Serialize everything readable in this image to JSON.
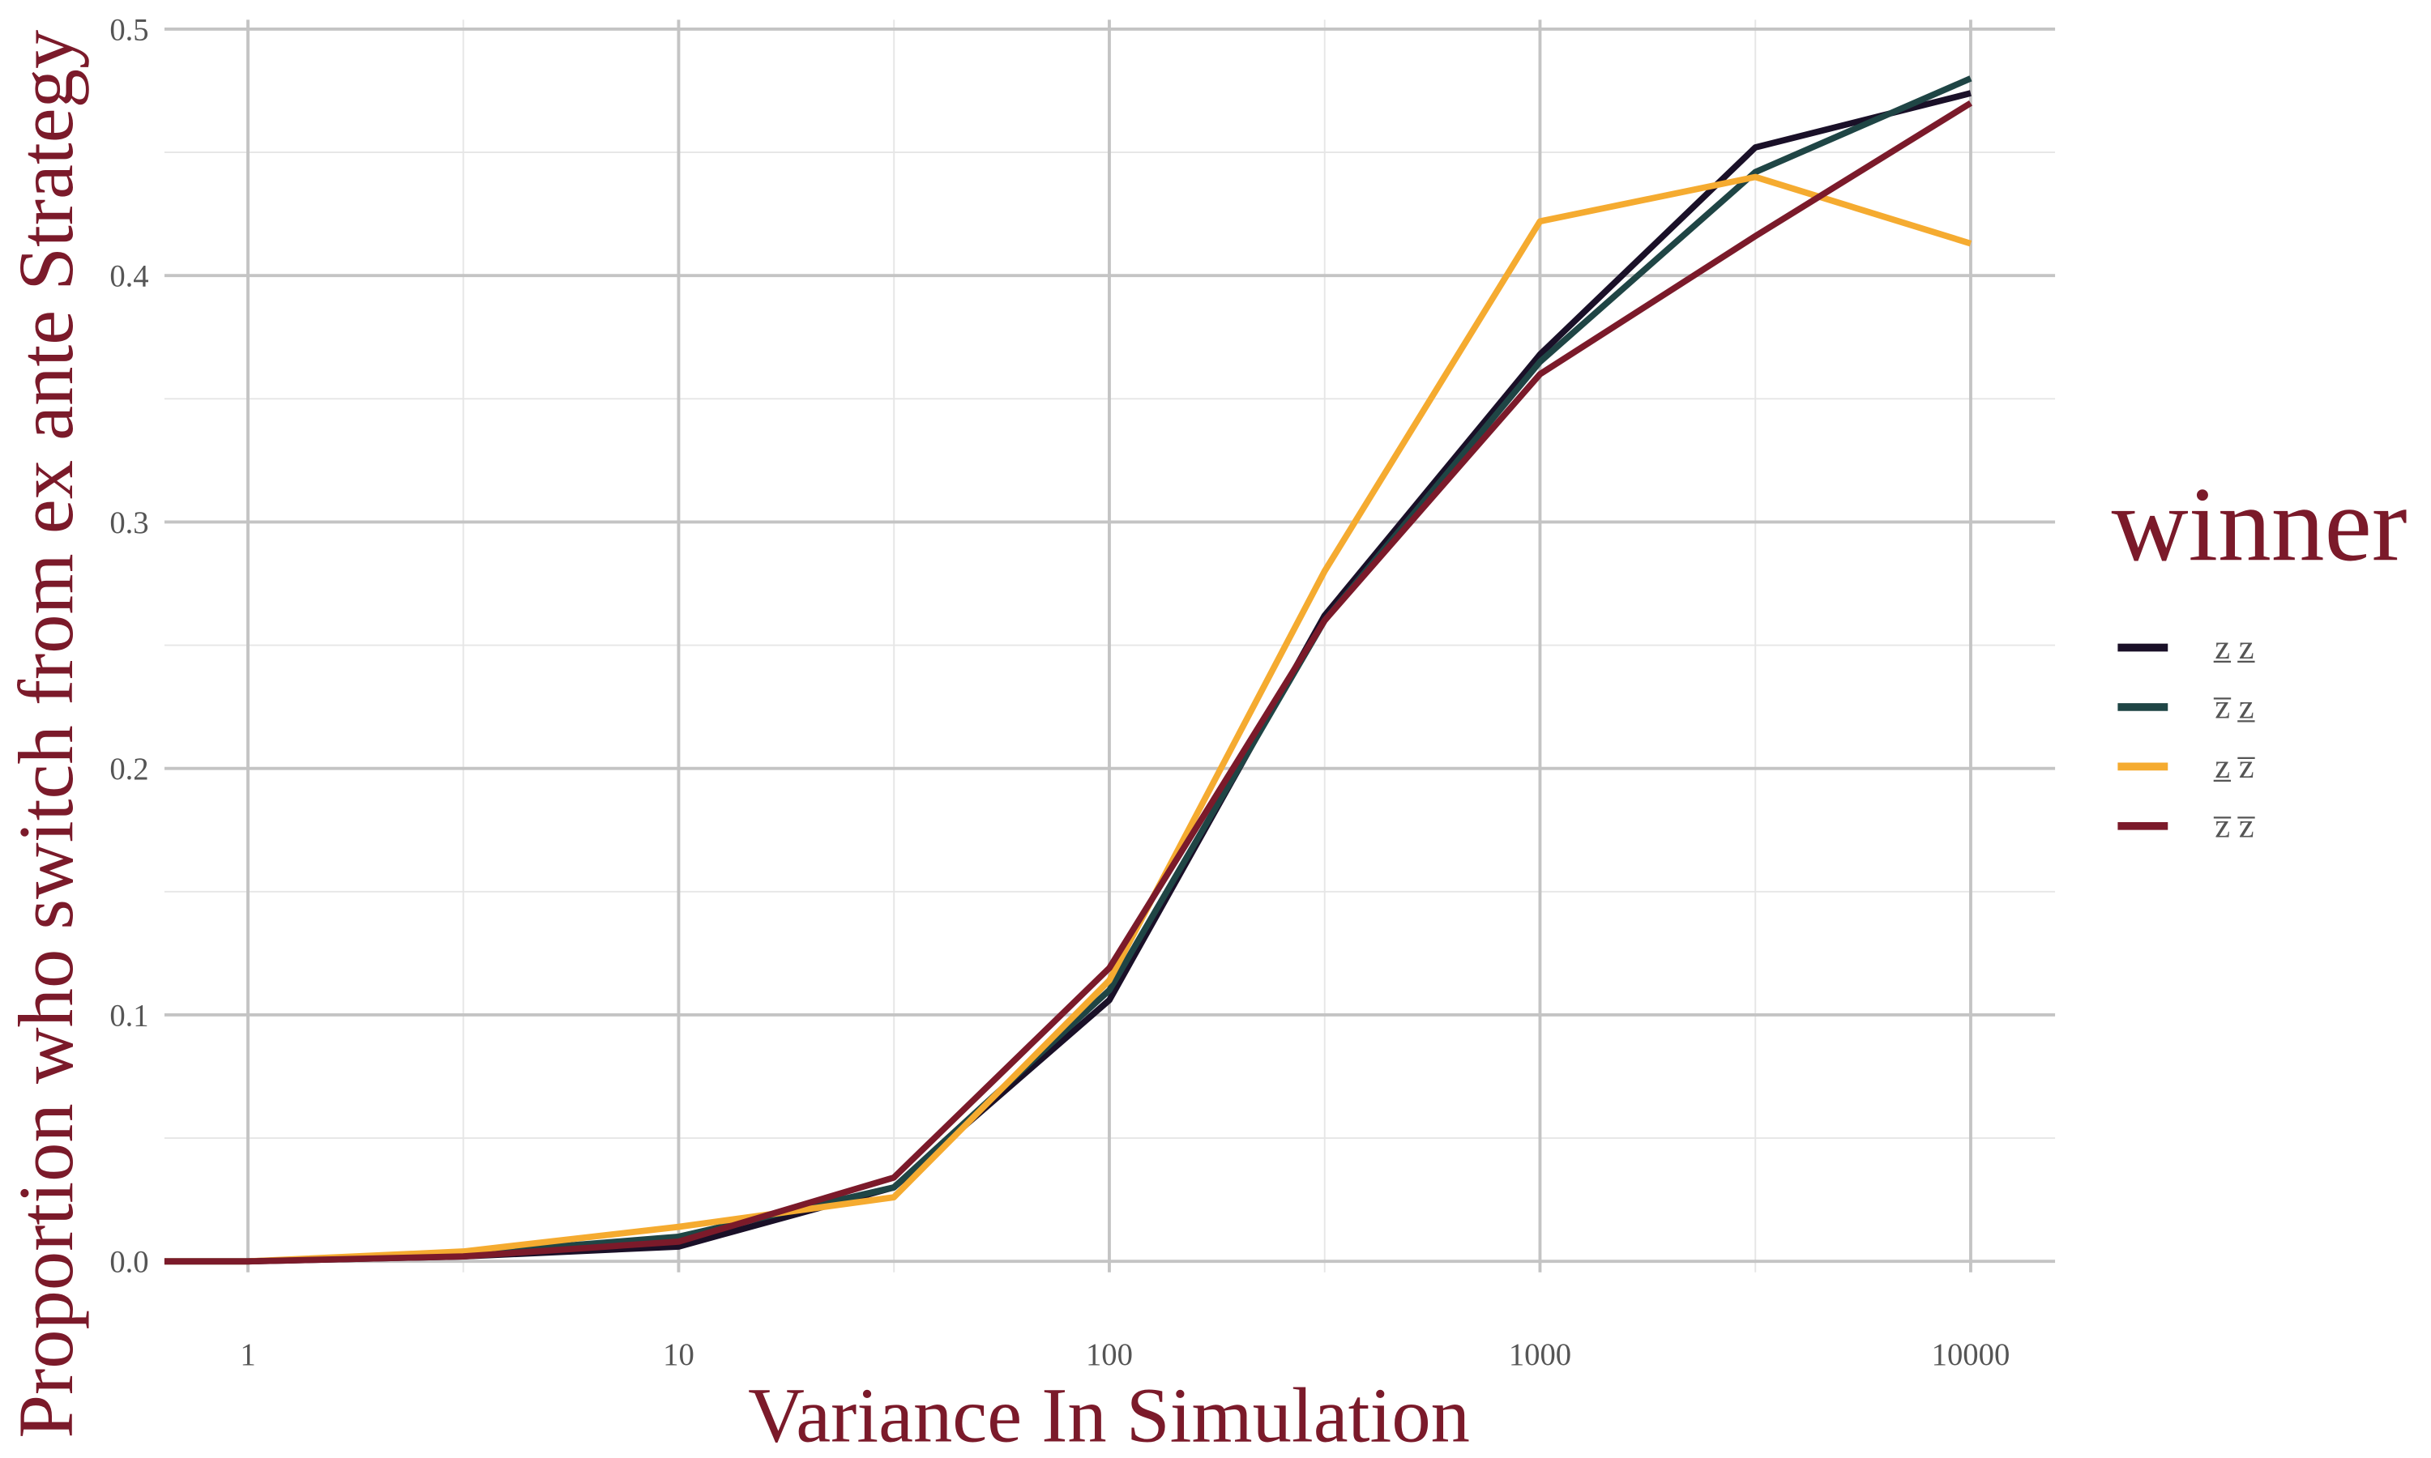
{
  "chart_data": {
    "type": "line",
    "x_label": "Variance In Simulation",
    "y_label": "Proportion who switch from ex ante Strategy",
    "legend_title": "winner",
    "log_x": true,
    "grid": true,
    "legend_position": "right",
    "xlim": [
      0.64,
      15700
    ],
    "ylim": [
      0,
      0.5
    ],
    "xticks": [
      1,
      10,
      100,
      1000,
      10000
    ],
    "yticks": [
      {
        "value": 0,
        "label": "0.0"
      },
      0.1,
      0.2,
      0.3,
      0.4,
      0.5
    ],
    "x": [
      0.64,
      1,
      3.16,
      10,
      31.6,
      100,
      316,
      1000,
      3162,
      10000
    ],
    "series": [
      {
        "name": "z̲ z̲",
        "color": "#1a1028",
        "values": [
          0,
          0,
          0.002,
          0.006,
          0.03,
          0.106,
          0.262,
          0.368,
          0.452,
          0.474
        ]
      },
      {
        "name": "z̅ z̲",
        "color": "#1f4545",
        "values": [
          0,
          0,
          0.003,
          0.01,
          0.03,
          0.11,
          0.26,
          0.365,
          0.442,
          0.48
        ]
      },
      {
        "name": "z̲ z̅",
        "color": "#f5ab30",
        "values": [
          0,
          0,
          0.004,
          0.014,
          0.026,
          0.114,
          0.28,
          0.422,
          0.44,
          0.413
        ]
      },
      {
        "name": "z̅ z̅",
        "color": "#7b1a2a",
        "values": [
          0,
          0,
          0.002,
          0.008,
          0.034,
          0.119,
          0.26,
          0.36,
          0.416,
          0.47
        ]
      }
    ]
  }
}
